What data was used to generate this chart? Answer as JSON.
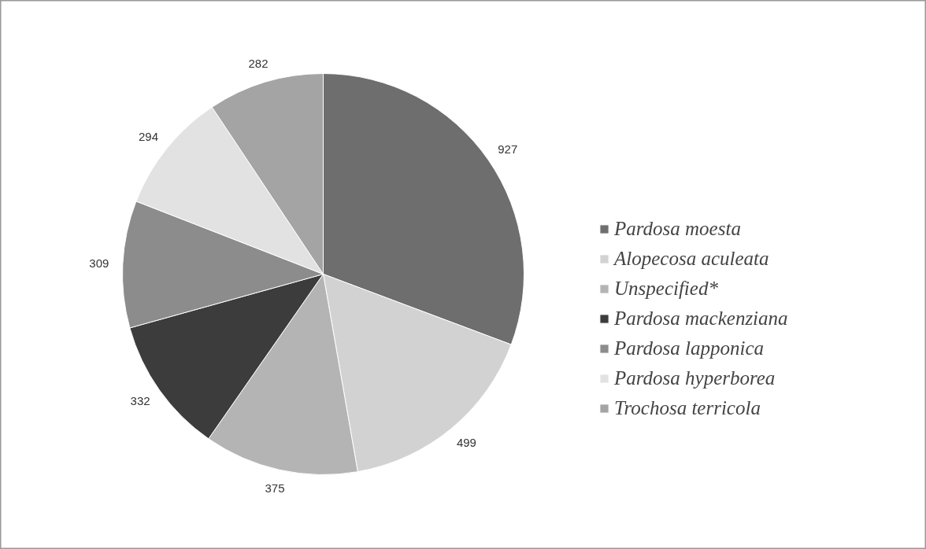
{
  "chart_data": {
    "type": "pie",
    "categories": [
      "Pardosa moesta",
      "Alopecosa aculeata",
      "Unspecified*",
      "Pardosa mackenziana",
      "Pardosa lapponica",
      "Pardosa hyperborea",
      "Trochosa terricola"
    ],
    "values": [
      927,
      499,
      375,
      332,
      309,
      294,
      282
    ],
    "colors": [
      "#6e6e6e",
      "#d2d2d2",
      "#b4b4b4",
      "#3c3c3c",
      "#8c8c8c",
      "#e2e2e2",
      "#a4a4a4"
    ],
    "data_labels": true,
    "legend": "right"
  }
}
